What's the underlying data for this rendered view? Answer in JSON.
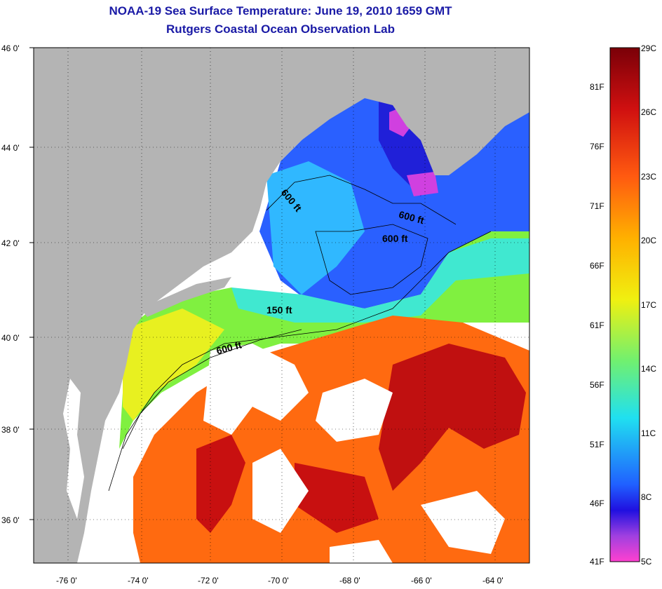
{
  "header": {
    "title": "NOAA-19 Sea Surface Temperature:  June 19, 2010 1659 GMT",
    "subtitle": "Rutgers Coastal Ocean Observation Lab"
  },
  "axes": {
    "lat_ticks": [
      "46 0'",
      "44 0'",
      "42 0'",
      "40 0'",
      "38 0'",
      "36 0'"
    ],
    "lon_ticks": [
      "-76 0'",
      "-74 0'",
      "-72 0'",
      "-70 0'",
      "-68 0'",
      "-66 0'",
      "-64 0'"
    ]
  },
  "contours": [
    "600 ft",
    "600 ft",
    "600 ft",
    "150 ft",
    "600 ft"
  ],
  "colorbar": {
    "celsius": [
      "29C",
      "26C",
      "23C",
      "20C",
      "17C",
      "14C",
      "11C",
      "8C",
      "5C"
    ],
    "fahrenheit": [
      "81F",
      "76F",
      "71F",
      "66F",
      "61F",
      "56F",
      "51F",
      "46F",
      "41F"
    ]
  },
  "colors": {
    "title": "#1a1aa6",
    "land": "#b4b4b4",
    "no_data": "#ffffff"
  }
}
